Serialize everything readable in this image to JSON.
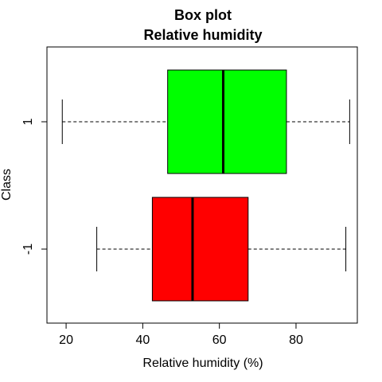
{
  "chart_data": {
    "type": "box",
    "title": "Box plot",
    "subtitle": "Relative humidity",
    "xlabel": "Relative humidity (%)",
    "ylabel": "Class",
    "xlim": [
      15,
      96
    ],
    "x_ticks": [
      20,
      40,
      60,
      80
    ],
    "grid": false,
    "orientation": "horizontal",
    "series": [
      {
        "name": "1",
        "color": "#00ff00",
        "whisker_low": 19,
        "q1": 46.5,
        "median": 61,
        "q3": 77.5,
        "whisker_high": 94
      },
      {
        "name": "-1",
        "color": "#ff0000",
        "whisker_low": 28,
        "q1": 42.5,
        "median": 53,
        "q3": 67.5,
        "whisker_high": 93
      }
    ]
  }
}
